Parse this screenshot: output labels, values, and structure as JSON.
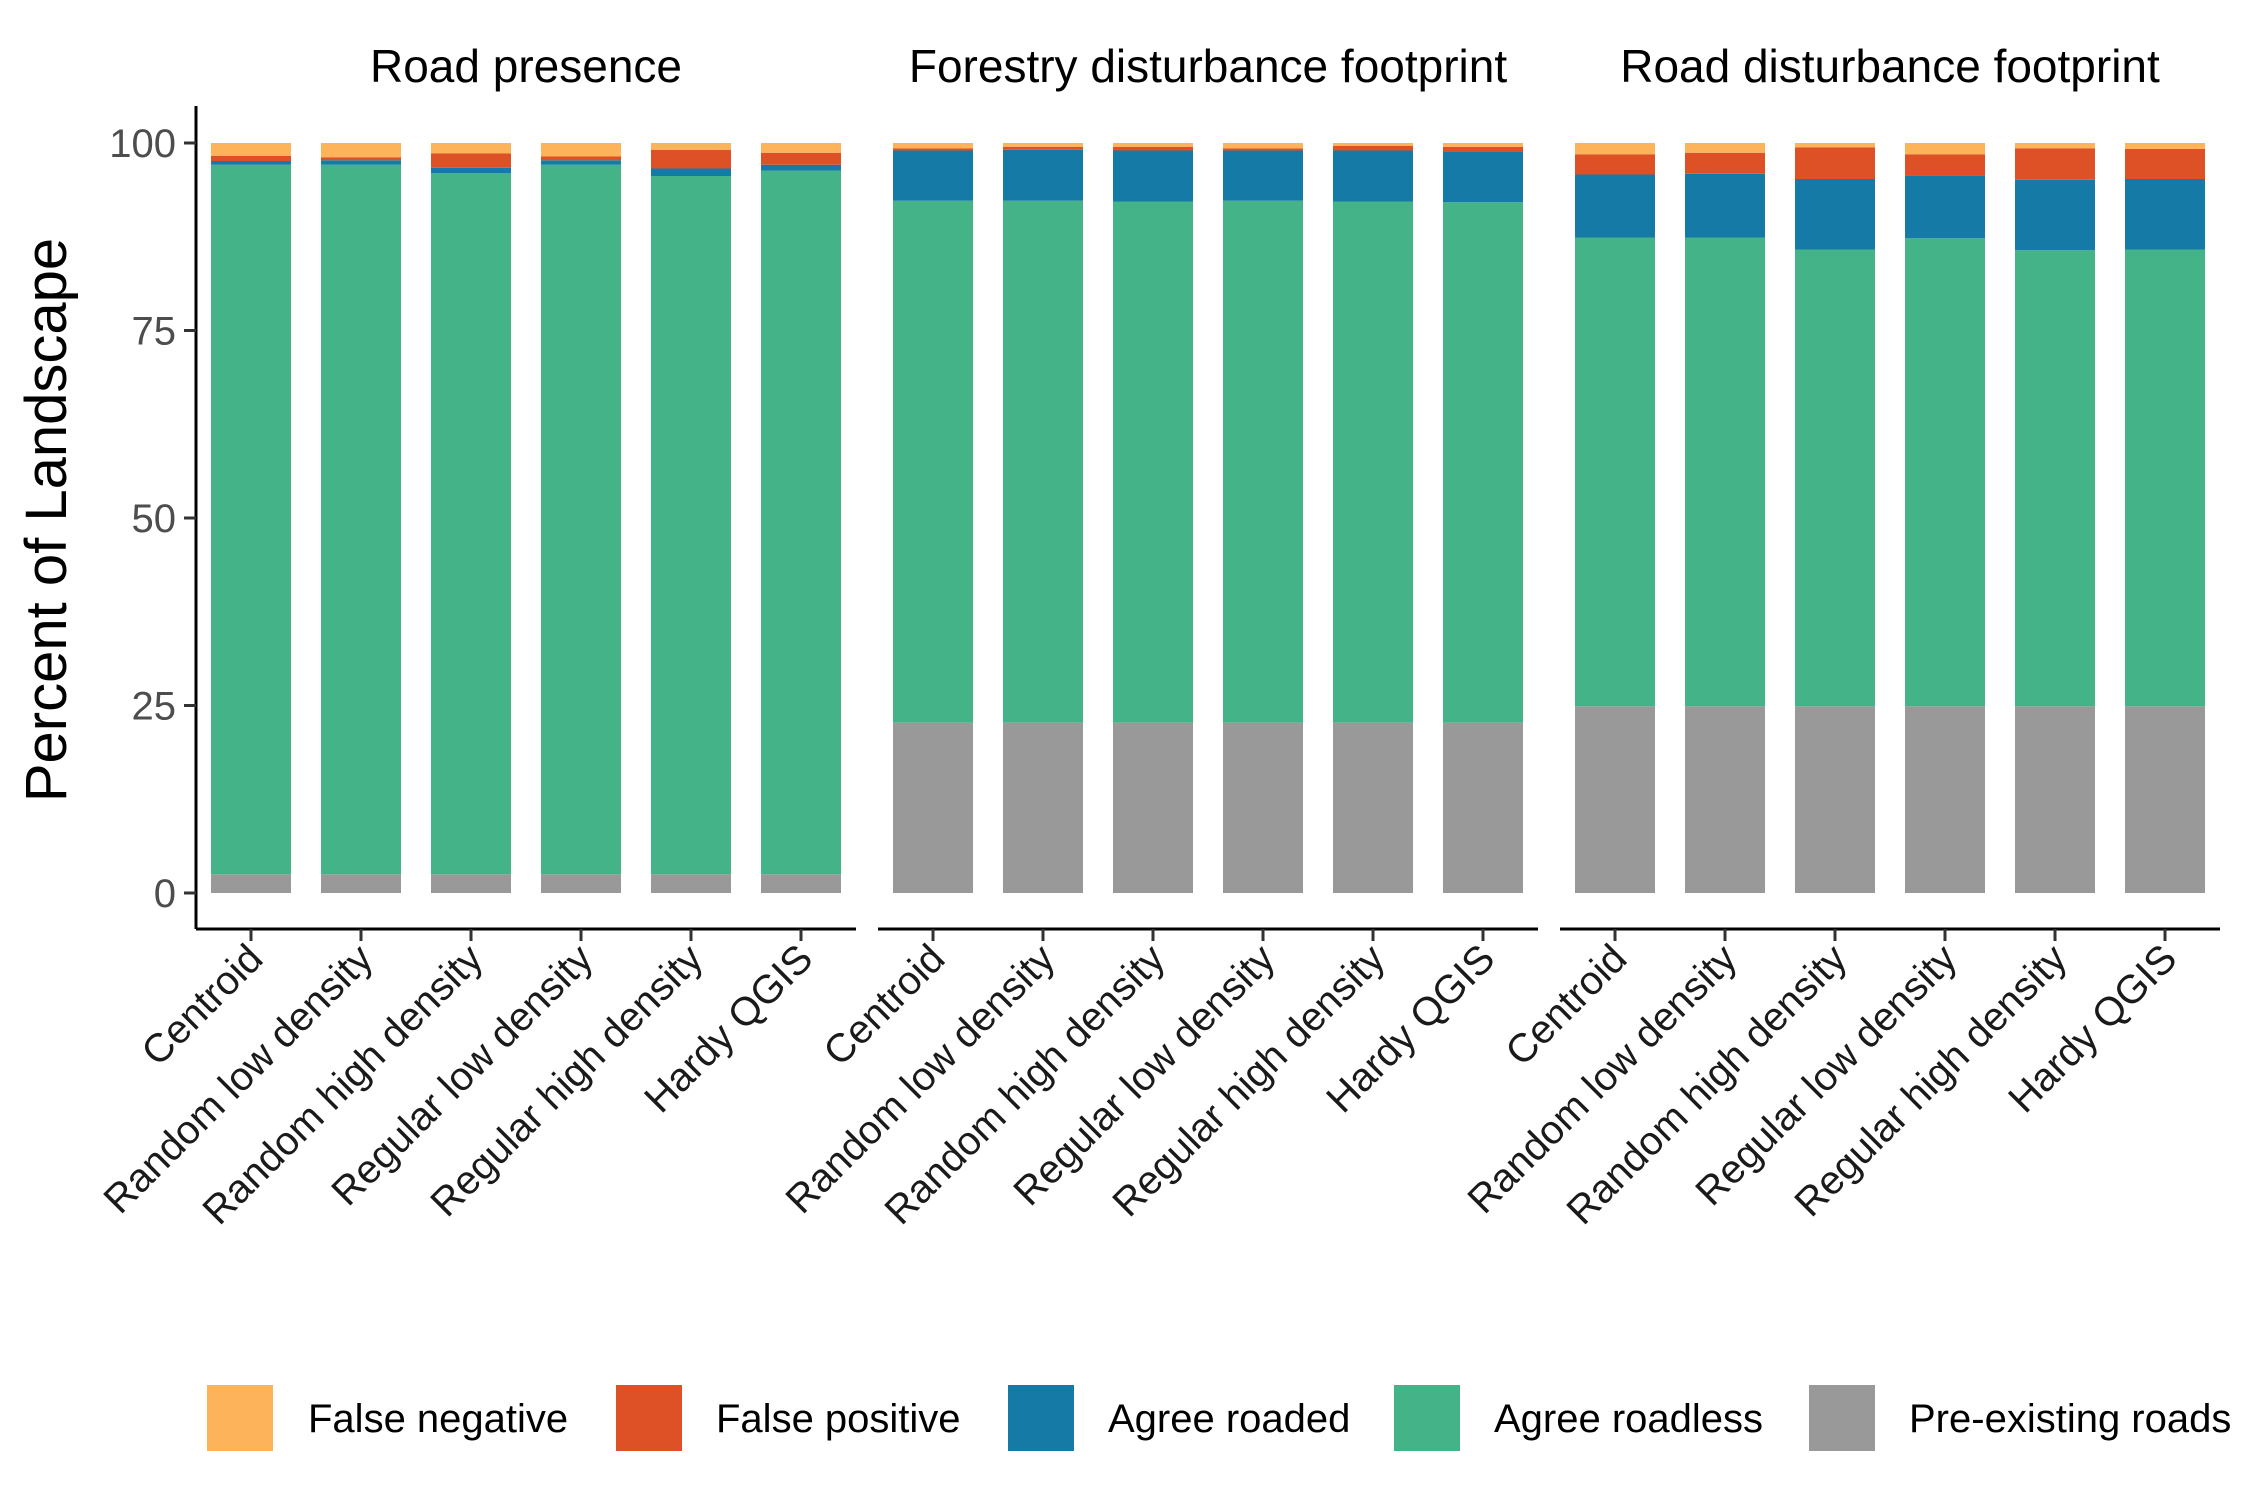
{
  "chart_data": {
    "type": "bar",
    "stacked": true,
    "ylabel": "Percent of Landscape",
    "xlabel": "",
    "ylim": [
      0,
      100
    ],
    "yticks": [
      0,
      25,
      50,
      75,
      100
    ],
    "categories": [
      "Centroid",
      "Random low density",
      "Random high density",
      "Regular low density",
      "Regular high density",
      "Hardy QGIS"
    ],
    "legend": {
      "position": "bottom",
      "entries": [
        {
          "name": "False negative",
          "color": "#FDB35A"
        },
        {
          "name": "False positive",
          "color": "#DE5127"
        },
        {
          "name": "Agree roaded",
          "color": "#167AA6"
        },
        {
          "name": "Agree roadless",
          "color": "#44B387"
        },
        {
          "name": "Pre-existing roads",
          "color": "#999999"
        }
      ]
    },
    "stack_order": [
      "Pre-existing roads",
      "Agree roadless",
      "Agree roaded",
      "False positive",
      "False negative"
    ],
    "panels": [
      {
        "title": "Road presence",
        "series": [
          {
            "name": "Pre-existing roads",
            "values": [
              2.5,
              2.5,
              2.5,
              2.5,
              2.5,
              2.5
            ]
          },
          {
            "name": "Agree roadless",
            "values": [
              94.6,
              94.6,
              93.5,
              94.6,
              93.1,
              93.8
            ]
          },
          {
            "name": "Agree roaded",
            "values": [
              0.5,
              0.6,
              0.7,
              0.6,
              1.0,
              0.8
            ]
          },
          {
            "name": "False positive",
            "values": [
              0.7,
              0.4,
              1.9,
              0.5,
              2.5,
              1.6
            ]
          },
          {
            "name": "False negative",
            "values": [
              1.7,
              1.9,
              1.4,
              1.8,
              0.9,
              1.3
            ]
          }
        ]
      },
      {
        "title": "Forestry disturbance footprint",
        "series": [
          {
            "name": "Pre-existing roads",
            "values": [
              22.7,
              22.7,
              22.7,
              22.7,
              22.7,
              22.7
            ]
          },
          {
            "name": "Agree roadless",
            "values": [
              69.6,
              69.6,
              69.5,
              69.6,
              69.5,
              69.4
            ]
          },
          {
            "name": "Agree roaded",
            "values": [
              6.7,
              6.8,
              6.8,
              6.7,
              6.8,
              6.7
            ]
          },
          {
            "name": "False positive",
            "values": [
              0.3,
              0.4,
              0.5,
              0.3,
              0.6,
              0.7
            ]
          },
          {
            "name": "False negative",
            "values": [
              0.7,
              0.5,
              0.5,
              0.7,
              0.4,
              0.5
            ]
          }
        ]
      },
      {
        "title": "Road disturbance footprint",
        "series": [
          {
            "name": "Pre-existing roads",
            "values": [
              24.9,
              24.9,
              24.9,
              24.9,
              24.9,
              24.9
            ]
          },
          {
            "name": "Agree roadless",
            "values": [
              62.5,
              62.5,
              60.9,
              62.4,
              60.8,
              60.9
            ]
          },
          {
            "name": "Agree roaded",
            "values": [
              8.4,
              8.5,
              9.4,
              8.4,
              9.4,
              9.4
            ]
          },
          {
            "name": "False positive",
            "values": [
              2.7,
              2.8,
              4.2,
              2.8,
              4.2,
              4.0
            ]
          },
          {
            "name": "False negative",
            "values": [
              1.5,
              1.3,
              0.6,
              1.5,
              0.7,
              0.8
            ]
          }
        ]
      }
    ]
  }
}
